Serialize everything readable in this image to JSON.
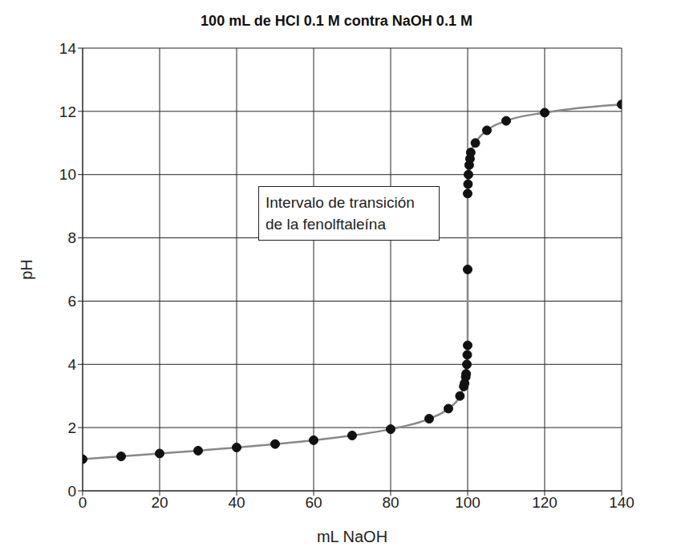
{
  "chart_data": {
    "type": "line",
    "title": "100 mL de HCl 0.1 M contra NaOH 0.1 M",
    "x_label": "mL NaOH",
    "y_label": "pH",
    "annotations": [
      "Intervalo de transición\nde la fenolftaleína"
    ],
    "x": [
      0,
      10,
      20,
      30,
      40,
      50,
      60,
      70,
      80,
      90,
      95,
      98,
      99,
      99.2,
      99.5,
      99.6,
      99.8,
      99.9,
      100,
      100,
      100,
      100.1,
      100.2,
      100.4,
      100.6,
      100.8,
      102,
      105,
      110,
      120,
      140
    ],
    "series": [
      {
        "name": "pH",
        "color": "#888888",
        "marker": "circle",
        "values": [
          1.0,
          1.09,
          1.18,
          1.27,
          1.37,
          1.48,
          1.6,
          1.75,
          1.95,
          2.28,
          2.6,
          3.0,
          3.3,
          3.4,
          3.6,
          3.7,
          4.0,
          4.3,
          4.6,
          7.0,
          9.4,
          9.7,
          10.0,
          10.3,
          10.5,
          10.7,
          11.0,
          11.4,
          11.7,
          11.96,
          12.22
        ]
      }
    ],
    "xlim": [
      0,
      140
    ],
    "xticks": [
      0,
      20,
      40,
      60,
      80,
      100,
      120,
      140
    ],
    "ylim": [
      0,
      14
    ],
    "yticks": [
      0,
      2,
      4,
      6,
      8,
      10,
      12,
      14
    ],
    "grid": true
  }
}
